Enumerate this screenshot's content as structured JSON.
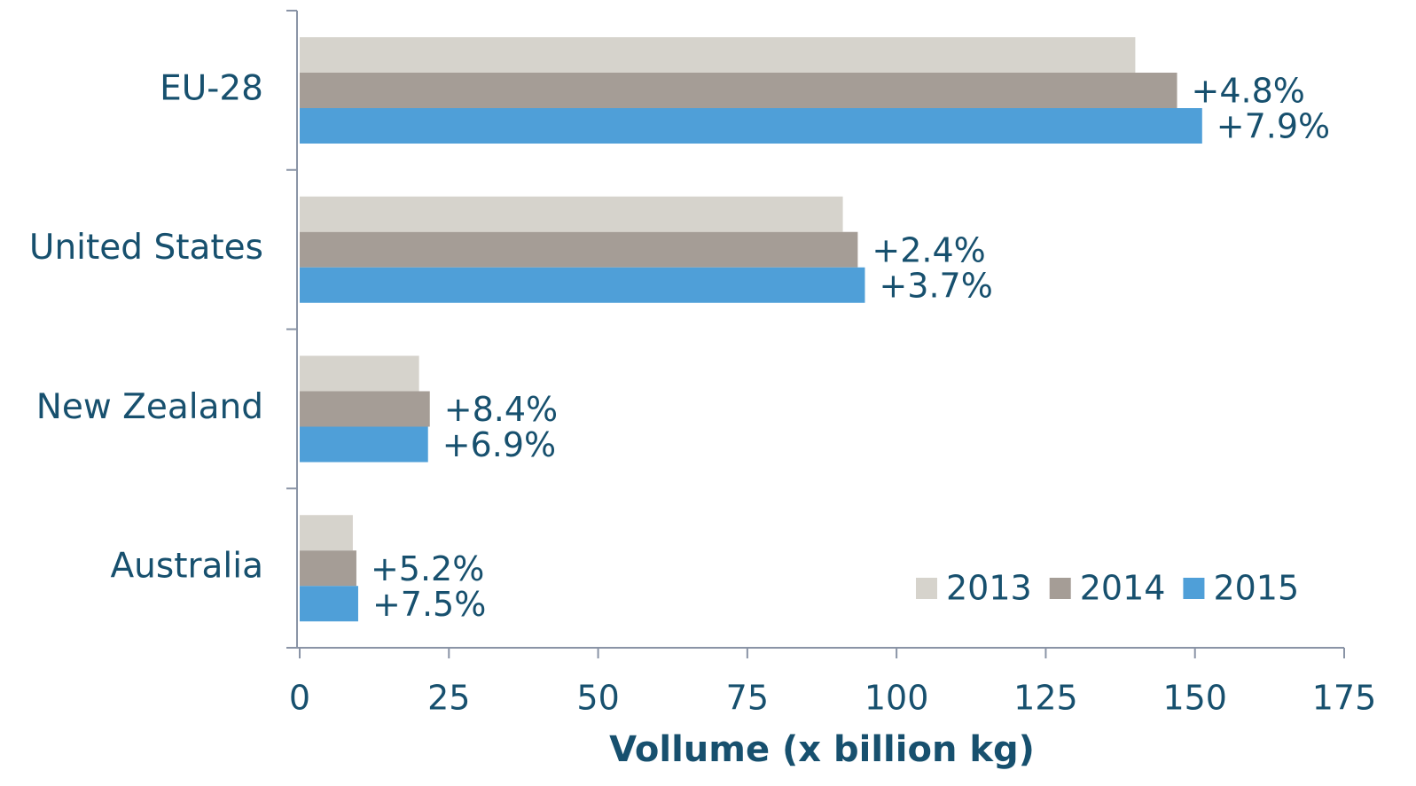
{
  "chart_data": {
    "type": "bar",
    "orientation": "horizontal",
    "x_label": "Vollume (x billion kg)",
    "categories": [
      "EU-28",
      "United States",
      "New Zealand",
      "Australia"
    ],
    "series": [
      {
        "name": "2013",
        "color": "#d6d3cc",
        "values": [
          140,
          91,
          20,
          8.9
        ]
      },
      {
        "name": "2014",
        "color": "#a59d96",
        "values": [
          147,
          93.5,
          21.8,
          9.5
        ],
        "labels": [
          "+4.8%",
          "+2.4%",
          "+8.4%",
          "+5.2%"
        ]
      },
      {
        "name": "2015",
        "color": "#4f9fd8",
        "values": [
          151.2,
          94.7,
          21.5,
          9.8
        ],
        "labels": [
          "+7.9%",
          "+3.7%",
          "+6.9%",
          "+7.5%"
        ]
      }
    ],
    "xlim": [
      0,
      175
    ],
    "xticks": [
      0,
      25,
      50,
      75,
      100,
      125,
      150,
      175
    ],
    "legend": "lower right"
  }
}
